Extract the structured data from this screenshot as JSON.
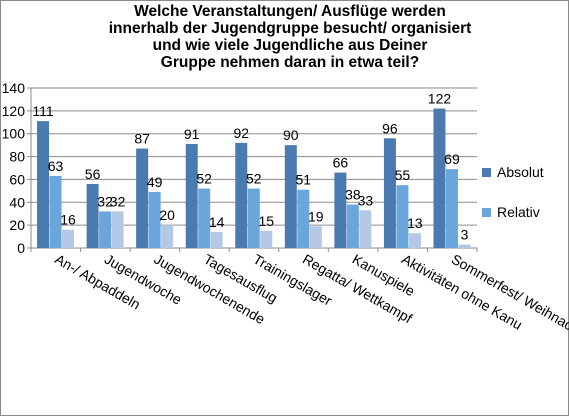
{
  "chart_data": {
    "type": "bar",
    "title_lines": [
      "Welche Veranstaltungen/ Ausflüge werden",
      "innerhalb der Jugendgruppe besucht/ organisiert",
      "und wie viele Jugendliche aus Deiner",
      "Gruppe nehmen daran in etwa teil?"
    ],
    "categories": [
      "An-/ Abpaddeln",
      "Jugendwoche",
      "Jugendwochenende",
      "Tagesausflug",
      "Trainingslager",
      "Regatta/ Wettkampf",
      "Kanuspiele",
      "Aktivitäten ohne Kanu",
      "Sommerfest/ Weihnachtsfeier"
    ],
    "series": [
      {
        "name": "Absolut",
        "color": "#4a7ab0",
        "values": [
          111,
          56,
          87,
          91,
          92,
          90,
          66,
          96,
          122
        ]
      },
      {
        "name": "Relativ",
        "color": "#6aa6dc",
        "values": [
          63,
          32,
          49,
          52,
          52,
          51,
          38,
          55,
          69
        ]
      },
      {
        "color": "#b4c8e6",
        "values": [
          16,
          32,
          20,
          14,
          15,
          19,
          33,
          13,
          3
        ]
      }
    ],
    "ylim": [
      0,
      140
    ],
    "yticks": [
      0,
      20,
      40,
      60,
      80,
      100,
      120,
      140
    ],
    "grid": true,
    "legend_position": "right"
  }
}
